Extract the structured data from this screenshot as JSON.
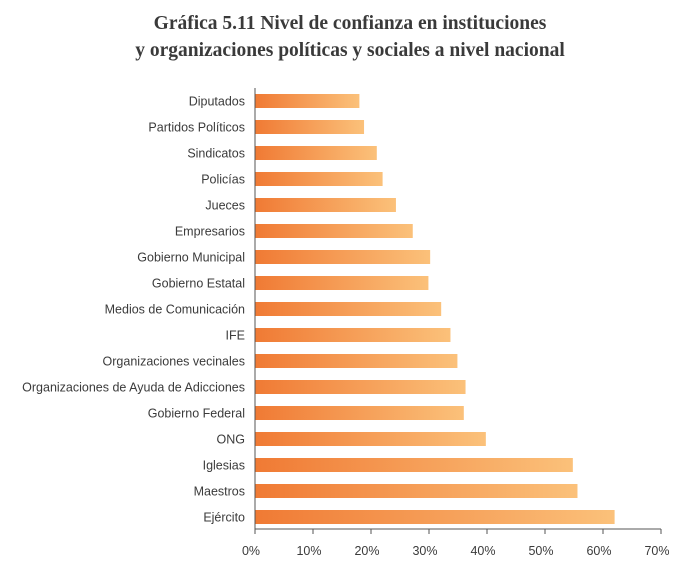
{
  "chart_data": {
    "type": "bar",
    "orientation": "horizontal",
    "title_lines": [
      "Gráfica 5.11 Nivel de confianza en instituciones",
      "y organizaciones políticas y sociales a nivel nacional"
    ],
    "categories": [
      "Diputados",
      "Partidos Políticos",
      "Sindicatos",
      "Policías",
      "Jueces",
      "Empresarios",
      "Gobierno Municipal",
      "Gobierno Estatal",
      "Medios de Comunicación",
      "IFE",
      "Organizaciones vecinales",
      "Organizaciones de Ayuda de Adicciones",
      "Gobierno Federal",
      "ONG",
      "Iglesias",
      "Maestros",
      "Ejército"
    ],
    "values": [
      18,
      18.8,
      21,
      22,
      24.3,
      27.2,
      30.2,
      29.9,
      32.1,
      33.7,
      34.9,
      36.3,
      36,
      39.8,
      54.8,
      55.6,
      62
    ],
    "xlim": [
      0,
      70
    ],
    "xticks": [
      0,
      10,
      20,
      30,
      40,
      50,
      60,
      70
    ],
    "xtick_labels": [
      "0%",
      "10%",
      "20%",
      "30%",
      "40%",
      "50%",
      "60%",
      "70%"
    ],
    "unit": "%",
    "grid": false,
    "colors": {
      "bar_start": "#f07a34",
      "bar_end": "#fbc17a",
      "axis": "#555555"
    }
  }
}
